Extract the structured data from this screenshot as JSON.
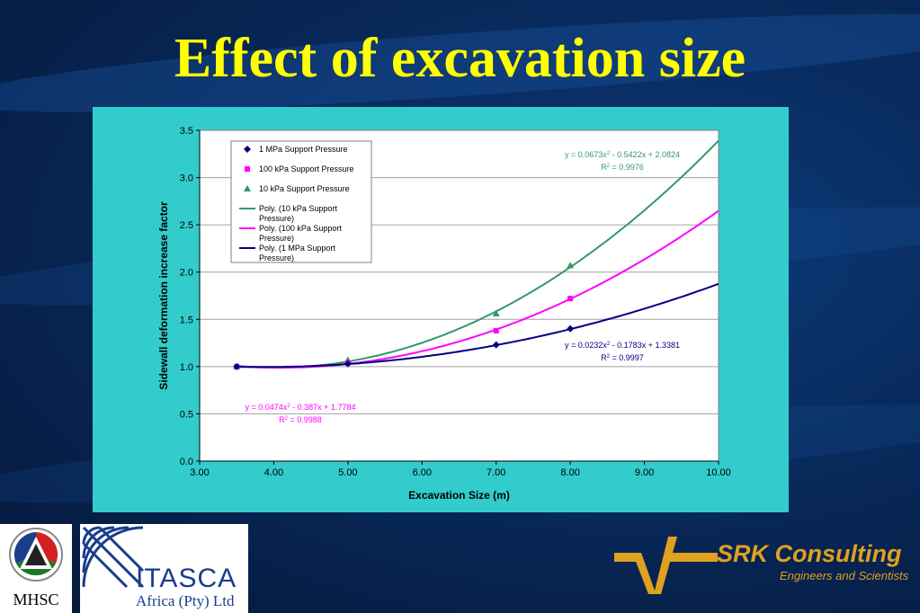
{
  "slide": {
    "title": "Effect of excavation size"
  },
  "chart_data": {
    "type": "scatter",
    "xlabel": "Excavation Size (m)",
    "ylabel": "Sidewall deformation increase factor",
    "xlim": [
      3.0,
      10.0
    ],
    "ylim": [
      0.0,
      3.5
    ],
    "x_ticks": [
      "3.00",
      "4.00",
      "5.00",
      "6.00",
      "7.00",
      "8.00",
      "9.00",
      "10.00"
    ],
    "y_ticks": [
      "0.0",
      "0.5",
      "1.0",
      "1.5",
      "2.0",
      "2.5",
      "3.0",
      "3.5"
    ],
    "grid": "horizontal",
    "legend_position": "top-left",
    "series": [
      {
        "name": "1 MPa Support Pressure",
        "marker": "diamond",
        "color": "#000080",
        "x": [
          3.5,
          5.0,
          7.0,
          8.0
        ],
        "y": [
          1.0,
          1.03,
          1.23,
          1.4
        ]
      },
      {
        "name": "100 kPa Support Pressure",
        "marker": "square",
        "color": "#ff00ff",
        "x": [
          3.5,
          5.0,
          7.0,
          8.0
        ],
        "y": [
          1.0,
          1.04,
          1.38,
          1.72
        ]
      },
      {
        "name": "10 kPa Support Pressure",
        "marker": "triangle",
        "color": "#339966",
        "x": [
          3.5,
          5.0,
          7.0,
          8.0
        ],
        "y": [
          1.0,
          1.07,
          1.56,
          2.07
        ]
      }
    ],
    "trendlines": [
      {
        "name": "Poly. (10 kPa Support Pressure)",
        "color": "#339966",
        "coefs": [
          0.0673,
          -0.5422,
          2.0824
        ],
        "equation": "y = 0.0673x",
        "equation_rest": " - 0.5422x + 2.0824",
        "r2": "R",
        "r2_rest": " = 0.9976"
      },
      {
        "name": "Poly. (100 kPa Support Pressure)",
        "color": "#ff00ff",
        "coefs": [
          0.0474,
          -0.387,
          1.7784
        ],
        "equation": "y = 0.0474x",
        "equation_rest": " - 0.387x + 1.7784",
        "r2": "R",
        "r2_rest": " = 0.9988"
      },
      {
        "name": "Poly. (1 MPa Support Pressure)",
        "color": "#000080",
        "coefs": [
          0.0232,
          -0.1783,
          1.3381
        ],
        "equation": "y = 0.0232x",
        "equation_rest": " - 0.1783x + 1.3381",
        "r2": "R",
        "r2_rest": " = 0.9997"
      }
    ],
    "legend_entries": [
      "1 MPa Support Pressure",
      "100 kPa Support Pressure",
      "10 kPa Support Pressure",
      [
        "Poly. (10 kPa Support",
        "Pressure)"
      ],
      [
        "Poly. (100 kPa Support",
        "Pressure)"
      ],
      [
        "Poly. (1 MPa Support",
        "Pressure)"
      ]
    ]
  },
  "logos": {
    "mhsc": "MHSC",
    "itasca_name": "ITASCA",
    "itasca_sub": "Africa (Pty) Ltd",
    "srk_name": "SRK Consulting",
    "srk_tag": "Engineers and Scientists"
  },
  "colors": {
    "title": "#ffff00",
    "panel": "#33cccc",
    "background": "#082a5c",
    "srk": "#e0a020"
  }
}
